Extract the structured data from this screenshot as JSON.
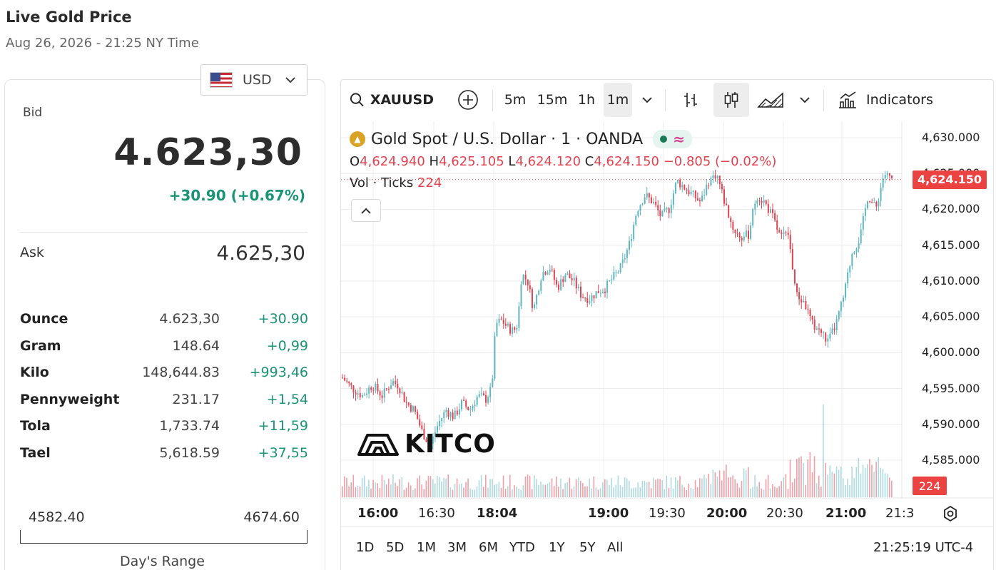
{
  "header": {
    "title": "Live Gold Price",
    "datetime": "Aug 26, 2026 - 21:25 NY Time"
  },
  "currency": {
    "selected": "USD",
    "flag_icon": "us-flag-icon"
  },
  "quote": {
    "bid_label": "Bid",
    "bid_value": "4.623,30",
    "bid_change": "+30.90 (+0.67%)",
    "ask_label": "Ask",
    "ask_value": "4.625,30",
    "change_color": "#1a9377"
  },
  "units": [
    {
      "name": "Ounce",
      "price": "4.623,30",
      "change": "+30.90"
    },
    {
      "name": "Gram",
      "price": "148.64",
      "change": "+0,99"
    },
    {
      "name": "Kilo",
      "price": "148,644.83",
      "change": "+993,46"
    },
    {
      "name": "Pennyweight",
      "price": "231.17",
      "change": "+1,54"
    },
    {
      "name": "Tola",
      "price": "1,733.74",
      "change": "+11,59"
    },
    {
      "name": "Tael",
      "price": "5,618.59",
      "change": "+37,55"
    }
  ],
  "days_range": {
    "low": "4582.40",
    "high": "4674.60",
    "caption": "Day's Range"
  },
  "toolbar": {
    "symbol": "XAUUSD",
    "intervals": [
      "5m",
      "15m",
      "1h",
      "1m"
    ],
    "active_interval": "1m",
    "indicators_label": "Indicators"
  },
  "legend": {
    "title": "Gold Spot / U.S. Dollar · 1 · OANDA",
    "o_label": "O",
    "o_value": "4,624.940",
    "h_label": "H",
    "h_value": "4,625.105",
    "l_label": "L",
    "l_value": "4,624.120",
    "c_label": "C",
    "c_value": "4,624.150",
    "change": "−0.805 (−0.02%)",
    "vol_label": "Vol · Ticks",
    "vol_value": "224"
  },
  "logo_text": "KITCO",
  "chart_data": {
    "type": "candlestick",
    "symbol": "XAUUSD",
    "y_ticks": [
      "4,630.000",
      "4,625.000",
      "4,620.000",
      "4,615.000",
      "4,610.000",
      "4,605.000",
      "4,600.000",
      "4,595.000",
      "4,590.000",
      "4,585.000"
    ],
    "ylim": [
      4580,
      4632
    ],
    "x_ticks": [
      "16:00",
      "16:30",
      "18:04",
      "19:00",
      "19:30",
      "20:00",
      "20:30",
      "21:00",
      "21:3"
    ],
    "last_price": "4,624.150",
    "last_volume": "224",
    "up_color": "#5fb6bf",
    "down_color": "#e0424f",
    "price_path": [
      [
        0,
        4596.5
      ],
      [
        5,
        4595
      ],
      [
        10,
        4594
      ],
      [
        15,
        4595.5
      ],
      [
        20,
        4594
      ],
      [
        25,
        4596
      ],
      [
        28,
        4595.5
      ],
      [
        32,
        4593
      ],
      [
        36,
        4592
      ],
      [
        40,
        4589
      ],
      [
        44,
        4587
      ],
      [
        48,
        4590
      ],
      [
        52,
        4592
      ],
      [
        56,
        4591
      ],
      [
        60,
        4593
      ],
      [
        64,
        4592
      ],
      [
        68,
        4594
      ],
      [
        72,
        4593.5
      ],
      [
        75,
        4595
      ],
      [
        77,
        4604
      ],
      [
        80,
        4604.5
      ],
      [
        83,
        4603.5
      ],
      [
        86,
        4603
      ],
      [
        88,
        4604
      ],
      [
        90,
        4611
      ],
      [
        93,
        4610
      ],
      [
        96,
        4606
      ],
      [
        100,
        4611
      ],
      [
        104,
        4612
      ],
      [
        108,
        4609
      ],
      [
        112,
        4611
      ],
      [
        116,
        4610
      ],
      [
        120,
        4608
      ],
      [
        124,
        4607.5
      ],
      [
        128,
        4608.5
      ],
      [
        132,
        4609
      ],
      [
        136,
        4610.5
      ],
      [
        140,
        4612
      ],
      [
        144,
        4615
      ],
      [
        148,
        4620
      ],
      [
        152,
        4622
      ],
      [
        156,
        4621
      ],
      [
        160,
        4619
      ],
      [
        164,
        4620
      ],
      [
        168,
        4624
      ],
      [
        172,
        4623
      ],
      [
        176,
        4622
      ],
      [
        180,
        4621
      ],
      [
        184,
        4624
      ],
      [
        188,
        4625
      ],
      [
        192,
        4621
      ],
      [
        196,
        4617.5
      ],
      [
        200,
        4616
      ],
      [
        204,
        4616.5
      ],
      [
        208,
        4622
      ],
      [
        212,
        4621
      ],
      [
        216,
        4619
      ],
      [
        220,
        4616
      ],
      [
        224,
        4616.5
      ],
      [
        228,
        4608
      ],
      [
        232,
        4607
      ],
      [
        236,
        4604
      ],
      [
        240,
        4603
      ],
      [
        244,
        4601.5
      ],
      [
        248,
        4604
      ],
      [
        252,
        4608
      ],
      [
        256,
        4614
      ],
      [
        260,
        4616
      ],
      [
        264,
        4622
      ],
      [
        268,
        4620
      ],
      [
        272,
        4625
      ],
      [
        276,
        4624.15
      ]
    ]
  },
  "time_ranges": [
    "1D",
    "5D",
    "1M",
    "3M",
    "6M",
    "YTD",
    "1Y",
    "5Y",
    "All"
  ],
  "clock": "21:25:19 UTC-4"
}
